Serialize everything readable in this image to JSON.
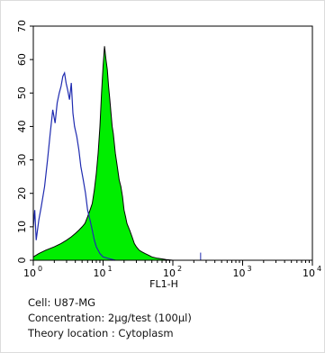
{
  "chart_data": {
    "type": "area",
    "title": "",
    "xlabel": "FL1-H",
    "ylabel": "",
    "x_scale": "log",
    "xlim": [
      1,
      10000
    ],
    "ylim": [
      0,
      70
    ],
    "grid": false,
    "x_ticks": [
      {
        "value": 1,
        "base": "10",
        "exp": "0"
      },
      {
        "value": 10,
        "base": "10",
        "exp": "1"
      },
      {
        "value": 100,
        "base": "10",
        "exp": "2"
      },
      {
        "value": 1000,
        "base": "10",
        "exp": "3"
      },
      {
        "value": 10000,
        "base": "10",
        "exp": "4"
      }
    ],
    "y_ticks": [
      0,
      10,
      20,
      30,
      40,
      50,
      60,
      70
    ],
    "series": [
      {
        "style": "outline",
        "color": "#1f2bb0",
        "x": [
          1,
          1.05,
          1.1,
          1.2,
          1.3,
          1.45,
          1.6,
          1.75,
          1.9,
          2.05,
          2.2,
          2.35,
          2.5,
          2.65,
          2.8,
          2.95,
          3.1,
          3.3,
          3.5,
          3.7,
          3.9,
          4.2,
          4.5,
          4.8,
          5.2,
          5.6,
          6.0,
          6.5,
          7.0,
          7.5,
          8.0,
          9.0,
          10,
          12,
          15
        ],
        "y": [
          10,
          15,
          6,
          12,
          16,
          22,
          30,
          38,
          45,
          41,
          47,
          50,
          52,
          55,
          56,
          53,
          51,
          48,
          53,
          44,
          40,
          37,
          33,
          28,
          24,
          20,
          15,
          12,
          9,
          6,
          4,
          2,
          1,
          0.5,
          0
        ]
      },
      {
        "style": "filled",
        "color": "#00ee00",
        "x": [
          1,
          1.2,
          1.5,
          2.0,
          2.5,
          3.0,
          3.5,
          4.0,
          4.5,
          5.0,
          5.5,
          6.0,
          6.5,
          7.0,
          7.5,
          8.0,
          8.5,
          9.0,
          9.5,
          10,
          10.5,
          11,
          11.5,
          12,
          12.5,
          13,
          13.5,
          14,
          15,
          16,
          17,
          18,
          19,
          20,
          21,
          22,
          24,
          26,
          28,
          30,
          33,
          36,
          40,
          45,
          50,
          60,
          70,
          80,
          90,
          100
        ],
        "y": [
          1,
          2,
          3,
          4,
          5,
          6,
          7,
          8,
          9,
          10,
          11,
          13,
          15,
          17,
          21,
          26,
          32,
          40,
          50,
          58,
          64,
          60,
          57,
          52,
          48,
          44,
          40,
          38,
          32,
          28,
          24,
          22,
          19,
          15,
          13,
          11,
          9,
          7,
          5,
          4,
          3,
          2.5,
          2,
          1.5,
          1,
          0.6,
          0.4,
          0.2,
          0.1,
          0
        ]
      }
    ],
    "annotations": [
      {
        "x": 250,
        "y": 1.2,
        "note": "small blue blip"
      }
    ]
  },
  "caption": {
    "cell": "Cell: U87-MG",
    "concentration": "Concentration: 2μg/test (100μl)",
    "location": "Theory location : Cytoplasm"
  }
}
